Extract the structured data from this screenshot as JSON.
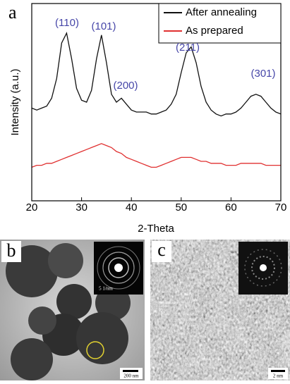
{
  "chart_data": {
    "type": "line",
    "panel_label": "a",
    "xlabel": "2-Theta",
    "ylabel": "Intensity (a.u.)",
    "xlim": [
      20,
      70
    ],
    "xticks": [
      20,
      30,
      40,
      50,
      60,
      70
    ],
    "ylim": [
      0,
      100
    ],
    "legend": "upper right",
    "annotations": [
      "(110)",
      "(101)",
      "(200)",
      "(211)",
      "(301)"
    ],
    "x": [
      20,
      21,
      22,
      23,
      24,
      25,
      26,
      27,
      28,
      29,
      30,
      31,
      32,
      33,
      34,
      35,
      36,
      37,
      38,
      39,
      40,
      41,
      42,
      43,
      44,
      45,
      46,
      47,
      48,
      49,
      50,
      51,
      52,
      53,
      54,
      55,
      56,
      57,
      58,
      59,
      60,
      61,
      62,
      63,
      64,
      65,
      66,
      67,
      68,
      69,
      70
    ],
    "series": [
      {
        "name": "After annealing",
        "color": "#111111",
        "values": [
          47,
          46,
          47,
          48,
          52,
          62,
          80,
          85,
          72,
          57,
          51,
          50,
          56,
          72,
          84,
          70,
          54,
          50,
          52,
          49,
          46,
          45,
          45,
          45,
          44,
          44,
          45,
          46,
          49,
          54,
          65,
          75,
          78,
          70,
          58,
          50,
          46,
          44,
          43,
          44,
          44,
          45,
          47,
          50,
          53,
          54,
          53,
          50,
          47,
          45,
          44
        ]
      },
      {
        "name": "As prepared",
        "color": "#e03030",
        "values": [
          17,
          18,
          18,
          19,
          19,
          20,
          21,
          22,
          23,
          24,
          25,
          26,
          27,
          28,
          29,
          28,
          27,
          25,
          24,
          22,
          21,
          20,
          19,
          18,
          17,
          17,
          18,
          19,
          20,
          21,
          22,
          22,
          22,
          21,
          20,
          20,
          19,
          19,
          19,
          18,
          18,
          18,
          19,
          19,
          19,
          19,
          19,
          18,
          18,
          18,
          18
        ]
      }
    ]
  },
  "panels": [
    {
      "label": "b",
      "scale_bar": "200 nm",
      "inset_scale": "5 1/nm"
    },
    {
      "label": "c",
      "scale_bar": "2 nm"
    }
  ]
}
